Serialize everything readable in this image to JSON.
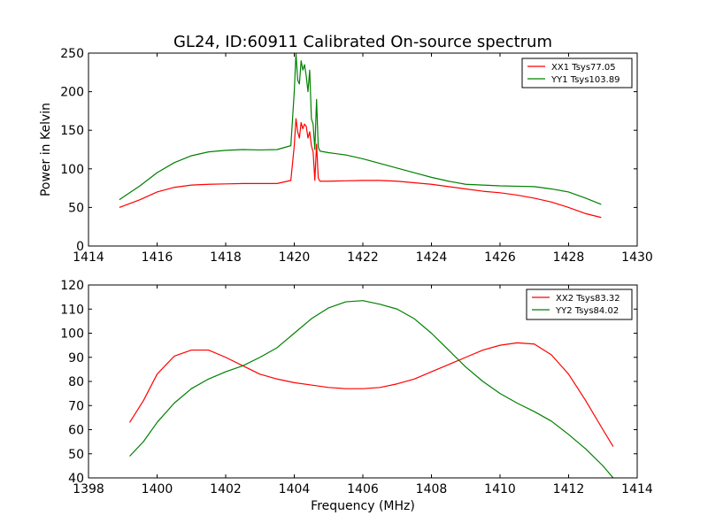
{
  "figure": {
    "title": "GL24, ID:60911 Calibrated On-source spectrum",
    "xlabel": "Frequency (MHz)",
    "ylabel": "Power in Kelvin"
  },
  "chart_data": [
    {
      "type": "line",
      "title": "GL24, ID:60911 Calibrated On-source spectrum",
      "xlabel": "",
      "ylabel": "Power in Kelvin",
      "xlim": [
        1414,
        1430
      ],
      "ylim": [
        0,
        250
      ],
      "xticks": [
        1414,
        1416,
        1418,
        1420,
        1422,
        1424,
        1426,
        1428,
        1430
      ],
      "yticks": [
        0,
        50,
        100,
        150,
        200,
        250
      ],
      "grid": false,
      "legend_position": "top-right",
      "series": [
        {
          "name": "XX1 Tsys77.05",
          "color": "#ff0000",
          "x": [
            1414.9,
            1415.5,
            1416,
            1416.5,
            1417,
            1417.5,
            1418,
            1418.5,
            1419,
            1419.5,
            1419.9,
            1420.0,
            1420.05,
            1420.1,
            1420.15,
            1420.2,
            1420.25,
            1420.3,
            1420.35,
            1420.4,
            1420.45,
            1420.5,
            1420.55,
            1420.6,
            1420.65,
            1420.7,
            1420.75,
            1421,
            1421.5,
            1422,
            1422.5,
            1423,
            1423.5,
            1424,
            1424.5,
            1425,
            1425.5,
            1426,
            1426.5,
            1427,
            1427.5,
            1428,
            1428.5,
            1428.95
          ],
          "y": [
            50,
            60,
            70,
            76,
            79,
            80,
            80.5,
            81,
            81,
            81,
            85,
            130,
            165,
            148,
            140,
            160,
            152,
            158,
            155,
            140,
            148,
            130,
            122,
            85,
            132,
            88,
            84,
            84,
            84.5,
            85,
            85,
            84,
            82,
            80,
            77,
            74,
            71,
            69,
            66,
            62,
            57,
            50,
            42,
            37
          ]
        },
        {
          "name": "YY1 Tsys103.89",
          "color": "#008000",
          "x": [
            1414.9,
            1415.5,
            1416,
            1416.5,
            1417,
            1417.5,
            1418,
            1418.5,
            1419,
            1419.5,
            1419.9,
            1420.0,
            1420.05,
            1420.1,
            1420.15,
            1420.2,
            1420.25,
            1420.3,
            1420.35,
            1420.4,
            1420.45,
            1420.5,
            1420.55,
            1420.6,
            1420.65,
            1420.7,
            1420.75,
            1421,
            1421.5,
            1422,
            1422.5,
            1423,
            1423.5,
            1424,
            1424.5,
            1425,
            1425.5,
            1426,
            1426.5,
            1427,
            1427.5,
            1428,
            1428.5,
            1428.95
          ],
          "y": [
            60,
            78,
            95,
            108,
            117,
            122,
            124,
            125,
            124.5,
            125,
            130,
            200,
            250,
            215,
            210,
            240,
            228,
            235,
            220,
            200,
            228,
            165,
            158,
            125,
            190,
            128,
            123,
            121,
            118,
            113,
            107,
            101,
            95,
            89,
            84,
            80,
            79,
            78,
            77.5,
            77,
            74,
            70,
            62,
            54
          ]
        }
      ]
    },
    {
      "type": "line",
      "title": "",
      "xlabel": "Frequency (MHz)",
      "ylabel": "",
      "xlim": [
        1398,
        1414
      ],
      "ylim": [
        40,
        120
      ],
      "xticks": [
        1398,
        1400,
        1402,
        1404,
        1406,
        1408,
        1410,
        1412,
        1414
      ],
      "yticks": [
        40,
        50,
        60,
        70,
        80,
        90,
        100,
        110,
        120
      ],
      "grid": false,
      "legend_position": "top-right",
      "series": [
        {
          "name": "XX2 Tsys83.32",
          "color": "#ff0000",
          "x": [
            1399.2,
            1399.6,
            1400,
            1400.5,
            1401,
            1401.5,
            1402,
            1402.5,
            1403,
            1403.5,
            1404,
            1404.5,
            1405,
            1405.5,
            1406,
            1406.5,
            1407,
            1407.5,
            1408,
            1408.5,
            1409,
            1409.5,
            1410,
            1410.5,
            1411,
            1411.5,
            1412,
            1412.5,
            1413,
            1413.3
          ],
          "y": [
            63,
            72,
            83,
            90.5,
            93,
            93,
            90,
            86.5,
            83,
            81,
            79.5,
            78.5,
            77.5,
            77,
            77,
            77.5,
            79,
            81,
            84,
            87,
            90,
            93,
            95,
            96,
            95.5,
            91,
            83,
            72,
            60,
            53
          ]
        },
        {
          "name": "YY2 Tsys84.02",
          "color": "#008000",
          "x": [
            1399.2,
            1399.6,
            1400,
            1400.5,
            1401,
            1401.5,
            1402,
            1402.5,
            1403,
            1403.5,
            1404,
            1404.5,
            1405,
            1405.5,
            1406,
            1406.5,
            1407,
            1407.5,
            1408,
            1408.5,
            1409,
            1409.5,
            1410,
            1410.5,
            1411,
            1411.5,
            1412,
            1412.5,
            1413,
            1413.3
          ],
          "y": [
            49,
            55,
            63,
            71,
            77,
            81,
            84,
            86.5,
            90,
            94,
            100,
            106,
            110.5,
            113,
            113.5,
            112,
            110,
            106,
            100,
            93,
            86,
            80,
            75,
            71,
            67.5,
            63.5,
            58,
            52,
            45,
            40
          ]
        }
      ]
    }
  ]
}
